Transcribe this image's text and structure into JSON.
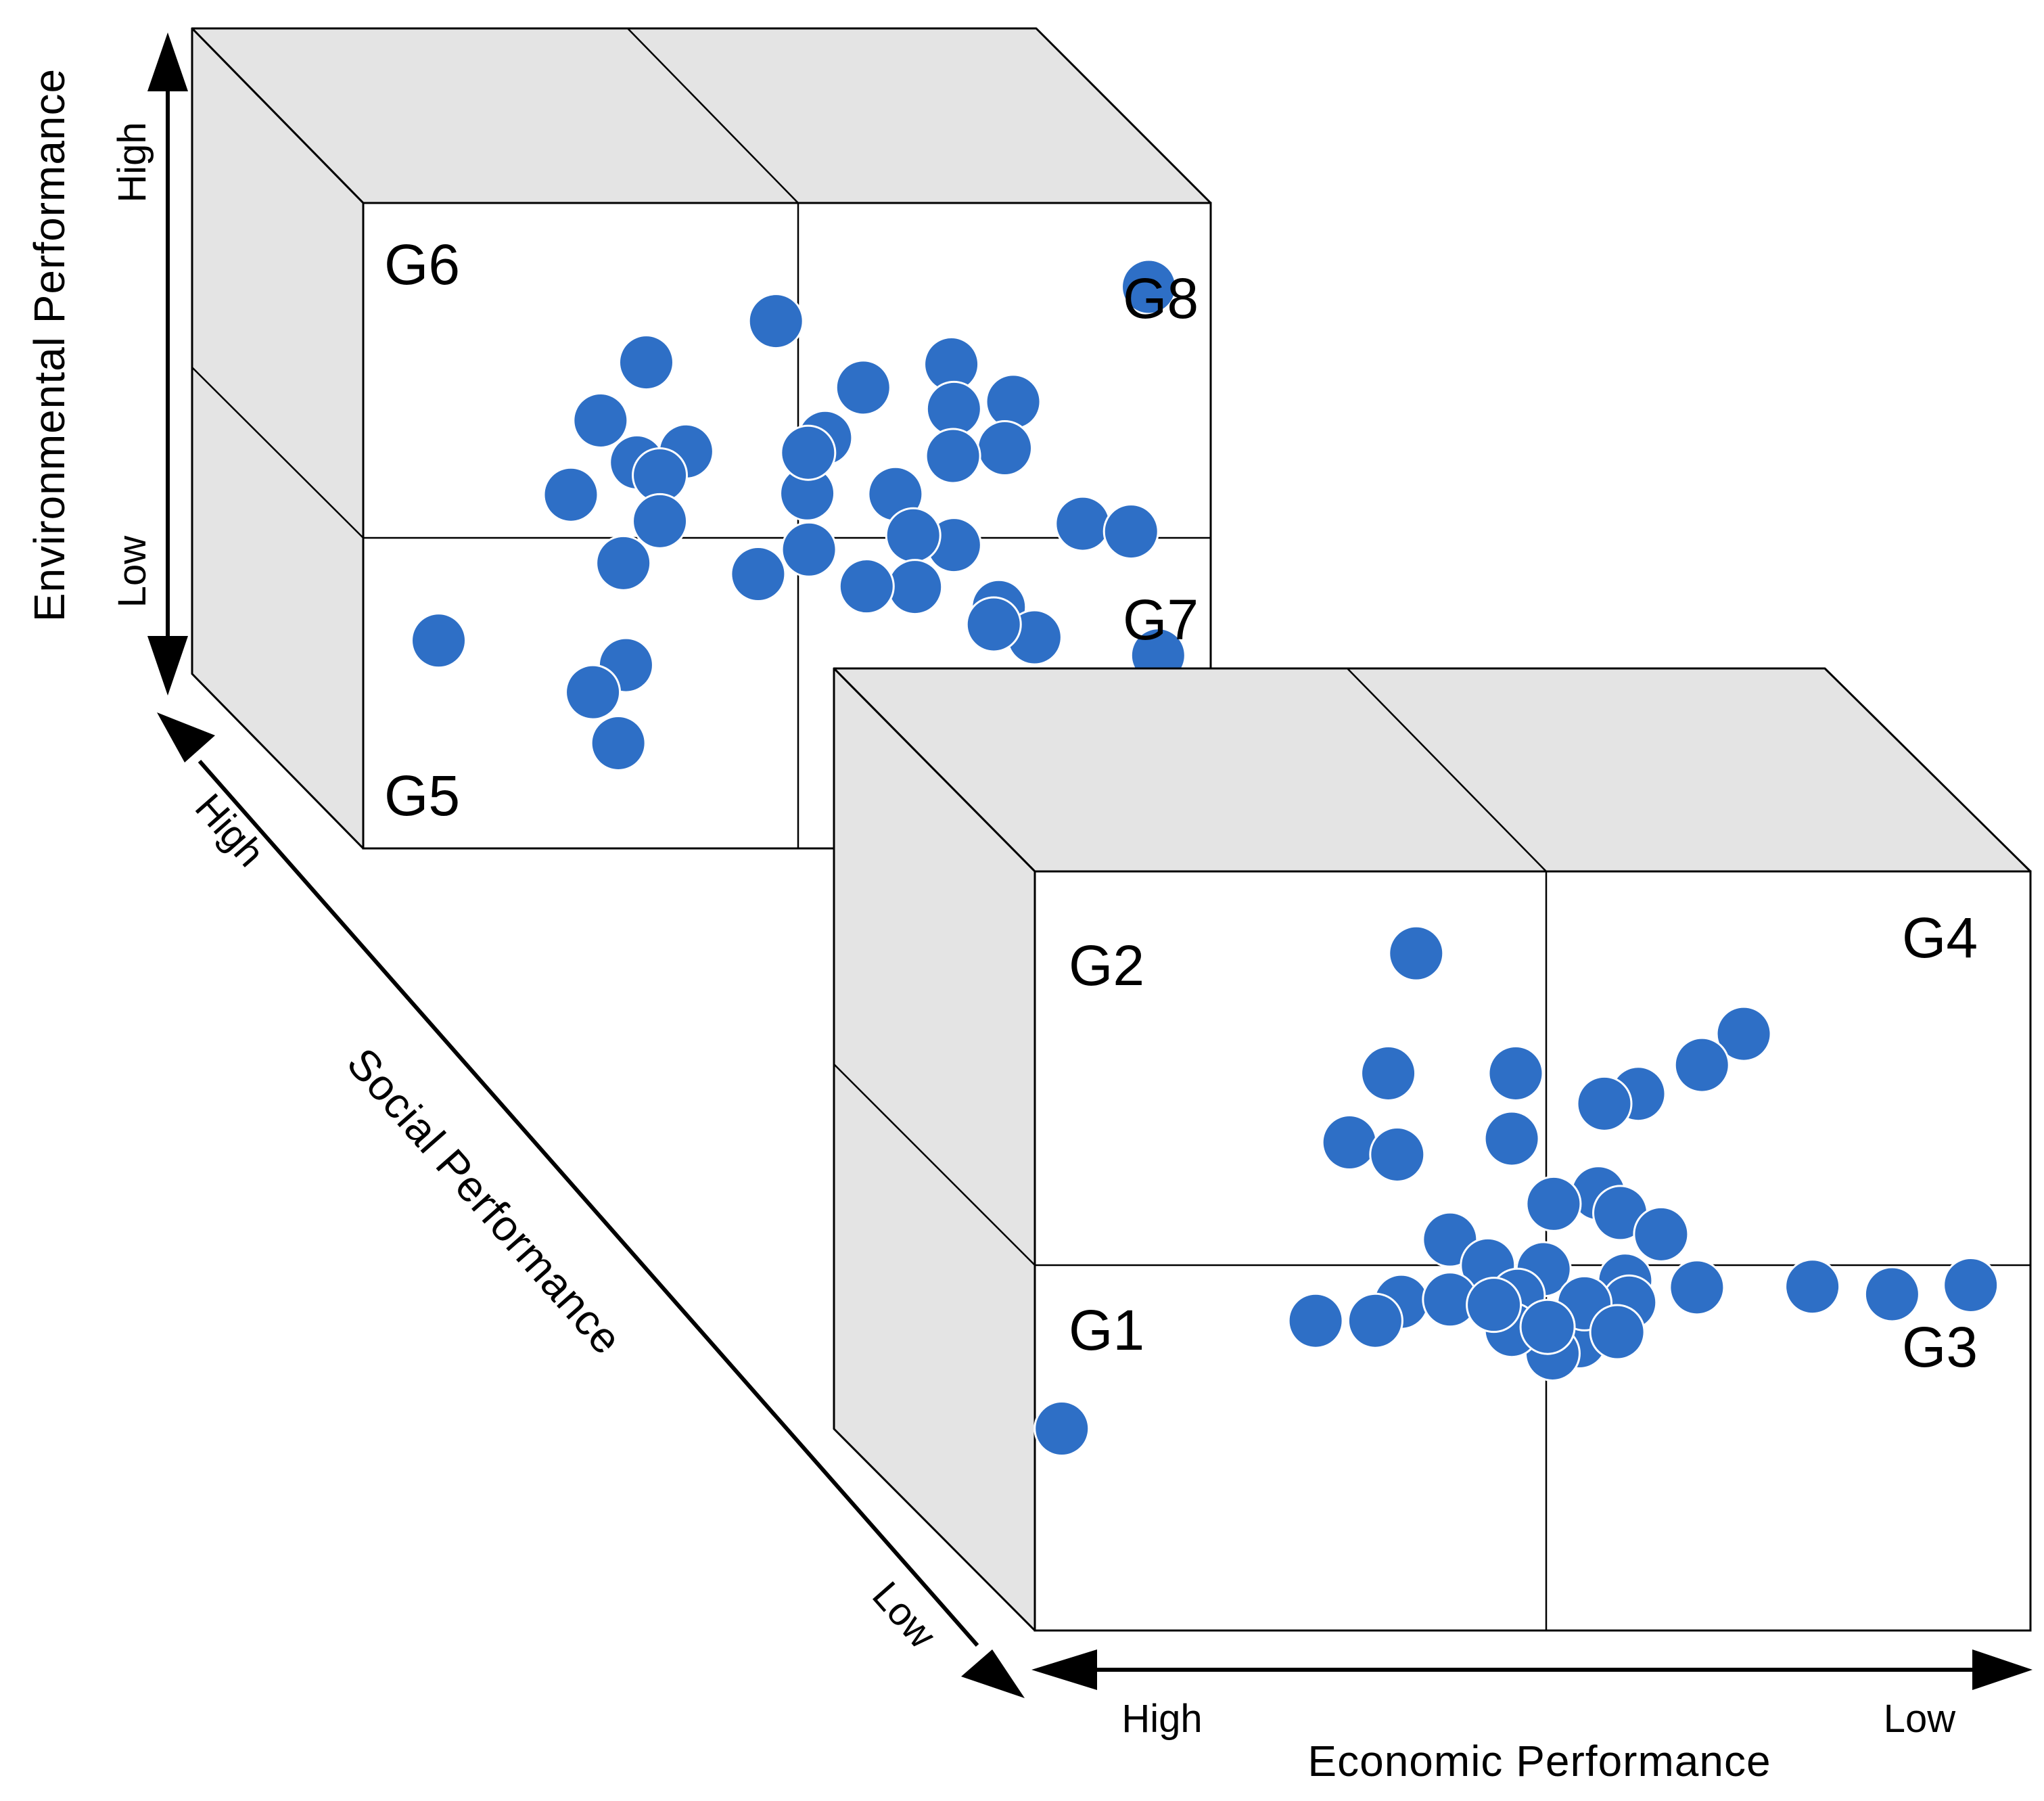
{
  "colors": {
    "dot": "#2e6fc6",
    "gray_face": "#e4e4e4"
  },
  "axes": {
    "environmental": {
      "label": "Environmental Performance",
      "high": "High",
      "low": "Low"
    },
    "social": {
      "label": "Social Performance",
      "high": "High",
      "low": "Low"
    },
    "economic": {
      "label": "Economic Performance",
      "high": "High",
      "low": "Low"
    }
  },
  "back_cube": {
    "groups": {
      "g6": "G6",
      "g8": "G8",
      "g7": "G7",
      "g5": "G5"
    },
    "points": [
      [
        0.927,
        0.13
      ],
      [
        0.334,
        0.247
      ],
      [
        0.487,
        0.183
      ],
      [
        0.59,
        0.286
      ],
      [
        0.694,
        0.25
      ],
      [
        0.767,
        0.308
      ],
      [
        0.697,
        0.319
      ],
      [
        0.757,
        0.38
      ],
      [
        0.545,
        0.364
      ],
      [
        0.696,
        0.392
      ],
      [
        0.381,
        0.385
      ],
      [
        0.28,
        0.337
      ],
      [
        0.323,
        0.402
      ],
      [
        0.35,
        0.422
      ],
      [
        0.245,
        0.452
      ],
      [
        0.524,
        0.45
      ],
      [
        0.628,
        0.451
      ],
      [
        0.525,
        0.387
      ],
      [
        0.35,
        0.493
      ],
      [
        0.307,
        0.558
      ],
      [
        0.466,
        0.575
      ],
      [
        0.526,
        0.537
      ],
      [
        0.697,
        0.53
      ],
      [
        0.849,
        0.497
      ],
      [
        0.649,
        0.515
      ],
      [
        0.75,
        0.626
      ],
      [
        0.651,
        0.595
      ],
      [
        0.594,
        0.594
      ],
      [
        0.792,
        0.673
      ],
      [
        0.938,
        0.701
      ],
      [
        0.744,
        0.653
      ],
      [
        0.31,
        0.716
      ],
      [
        0.301,
        0.837
      ],
      [
        0.271,
        0.758
      ],
      [
        0.089,
        0.678
      ],
      [
        0.906,
        0.509
      ]
    ]
  },
  "front_cube": {
    "groups": {
      "g2": "G2",
      "g4": "G4",
      "g1": "G1",
      "g3": "G3"
    },
    "points": [
      [
        0.383,
        0.108
      ],
      [
        0.712,
        0.214
      ],
      [
        0.67,
        0.255
      ],
      [
        0.606,
        0.293
      ],
      [
        0.572,
        0.306
      ],
      [
        0.483,
        0.266
      ],
      [
        0.355,
        0.266
      ],
      [
        0.316,
        0.357
      ],
      [
        0.364,
        0.373
      ],
      [
        0.479,
        0.352
      ],
      [
        0.566,
        0.424
      ],
      [
        0.588,
        0.45
      ],
      [
        0.629,
        0.478
      ],
      [
        0.521,
        0.438
      ],
      [
        0.417,
        0.485
      ],
      [
        0.511,
        0.524
      ],
      [
        0.455,
        0.519
      ],
      [
        0.593,
        0.539
      ],
      [
        0.368,
        0.567
      ],
      [
        0.282,
        0.592
      ],
      [
        0.342,
        0.592
      ],
      [
        0.417,
        0.564
      ],
      [
        0.485,
        0.559
      ],
      [
        0.573,
        0.6
      ],
      [
        0.547,
        0.619
      ],
      [
        0.52,
        0.635
      ],
      [
        0.479,
        0.604
      ],
      [
        0.665,
        0.548
      ],
      [
        0.781,
        0.547
      ],
      [
        0.861,
        0.557
      ],
      [
        0.94,
        0.545
      ],
      [
        0.027,
        0.734
      ],
      [
        0.597,
        0.568
      ],
      [
        0.552,
        0.569
      ],
      [
        0.585,
        0.607
      ],
      [
        0.515,
        0.6
      ],
      [
        0.461,
        0.571
      ]
    ]
  }
}
